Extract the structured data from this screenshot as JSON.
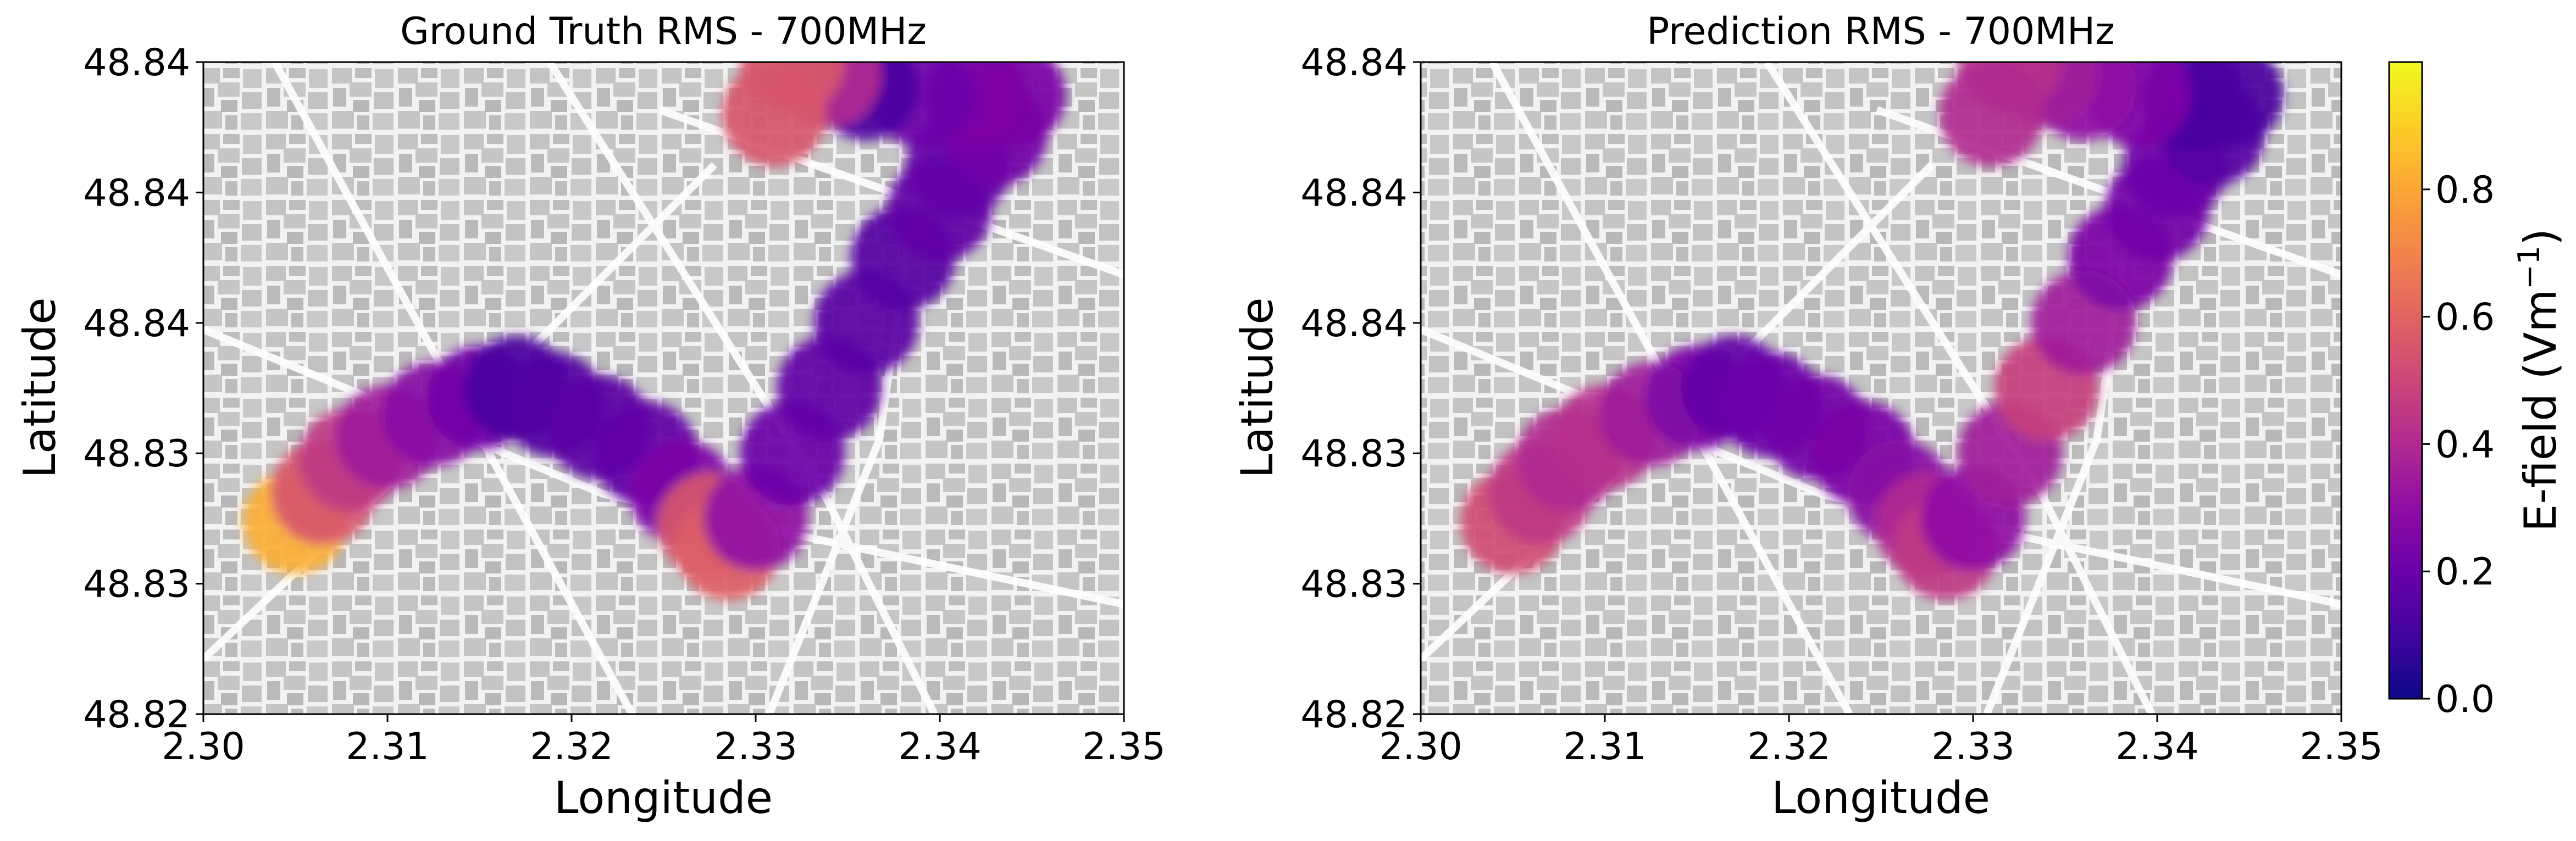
{
  "chart_data": [
    {
      "type": "heatmap",
      "title": "Ground Truth RMS - 700MHz",
      "xlabel": "Longitude",
      "ylabel": "Latitude",
      "xlim": [
        2.3,
        2.35
      ],
      "ylim": [
        48.82,
        48.84
      ],
      "xticks": [
        "2.30",
        "2.31",
        "2.32",
        "2.33",
        "2.34",
        "2.35"
      ],
      "yticks": [
        "48.82",
        "48.83",
        "48.83",
        "48.84",
        "48.84",
        "48.84"
      ],
      "grid": false,
      "background": "street map with buildings",
      "points": [
        {
          "lon": 2.305,
          "lat": 48.8259,
          "v": 0.82
        },
        {
          "lon": 2.3065,
          "lat": 48.8268,
          "v": 0.55
        },
        {
          "lon": 2.308,
          "lat": 48.8278,
          "v": 0.45
        },
        {
          "lon": 2.31,
          "lat": 48.8285,
          "v": 0.35
        },
        {
          "lon": 2.3125,
          "lat": 48.8292,
          "v": 0.28
        },
        {
          "lon": 2.315,
          "lat": 48.8297,
          "v": 0.22
        },
        {
          "lon": 2.317,
          "lat": 48.83,
          "v": 0.12
        },
        {
          "lon": 2.319,
          "lat": 48.8295,
          "v": 0.14
        },
        {
          "lon": 2.3215,
          "lat": 48.8288,
          "v": 0.16
        },
        {
          "lon": 2.324,
          "lat": 48.828,
          "v": 0.18
        },
        {
          "lon": 2.326,
          "lat": 48.8268,
          "v": 0.25
        },
        {
          "lon": 2.3275,
          "lat": 48.8258,
          "v": 0.55
        },
        {
          "lon": 2.3285,
          "lat": 48.8251,
          "v": 0.58
        },
        {
          "lon": 2.33,
          "lat": 48.826,
          "v": 0.3
        },
        {
          "lon": 2.332,
          "lat": 48.828,
          "v": 0.2
        },
        {
          "lon": 2.334,
          "lat": 48.83,
          "v": 0.18
        },
        {
          "lon": 2.336,
          "lat": 48.832,
          "v": 0.16
        },
        {
          "lon": 2.338,
          "lat": 48.834,
          "v": 0.15
        },
        {
          "lon": 2.34,
          "lat": 48.8355,
          "v": 0.18
        },
        {
          "lon": 2.341,
          "lat": 48.8368,
          "v": 0.18
        },
        {
          "lon": 2.343,
          "lat": 48.8378,
          "v": 0.22
        },
        {
          "lon": 2.344,
          "lat": 48.839,
          "v": 0.24
        },
        {
          "lon": 2.342,
          "lat": 48.8389,
          "v": 0.25
        },
        {
          "lon": 2.339,
          "lat": 48.839,
          "v": 0.2
        },
        {
          "lon": 2.336,
          "lat": 48.8392,
          "v": 0.12
        },
        {
          "lon": 2.334,
          "lat": 48.8396,
          "v": 0.4
        },
        {
          "lon": 2.332,
          "lat": 48.84,
          "v": 0.55
        },
        {
          "lon": 2.331,
          "lat": 48.8384,
          "v": 0.55
        }
      ]
    },
    {
      "type": "heatmap",
      "title": "Prediction RMS - 700MHz",
      "xlabel": "Longitude",
      "ylabel": "Latitude",
      "xlim": [
        2.3,
        2.35
      ],
      "ylim": [
        48.82,
        48.84
      ],
      "xticks": [
        "2.30",
        "2.31",
        "2.32",
        "2.33",
        "2.34",
        "2.35"
      ],
      "yticks": [
        "48.82",
        "48.83",
        "48.83",
        "48.84",
        "48.84",
        "48.84"
      ],
      "grid": false,
      "background": "street map with buildings",
      "points": [
        {
          "lon": 2.305,
          "lat": 48.8259,
          "v": 0.52
        },
        {
          "lon": 2.3065,
          "lat": 48.8268,
          "v": 0.45
        },
        {
          "lon": 2.308,
          "lat": 48.8278,
          "v": 0.4
        },
        {
          "lon": 2.31,
          "lat": 48.8285,
          "v": 0.42
        },
        {
          "lon": 2.3125,
          "lat": 48.8292,
          "v": 0.35
        },
        {
          "lon": 2.315,
          "lat": 48.8297,
          "v": 0.25
        },
        {
          "lon": 2.317,
          "lat": 48.83,
          "v": 0.18
        },
        {
          "lon": 2.319,
          "lat": 48.8295,
          "v": 0.2
        },
        {
          "lon": 2.3215,
          "lat": 48.8288,
          "v": 0.22
        },
        {
          "lon": 2.324,
          "lat": 48.828,
          "v": 0.24
        },
        {
          "lon": 2.326,
          "lat": 48.8268,
          "v": 0.28
        },
        {
          "lon": 2.3275,
          "lat": 48.8258,
          "v": 0.4
        },
        {
          "lon": 2.3285,
          "lat": 48.8251,
          "v": 0.45
        },
        {
          "lon": 2.33,
          "lat": 48.826,
          "v": 0.3
        },
        {
          "lon": 2.332,
          "lat": 48.828,
          "v": 0.35
        },
        {
          "lon": 2.334,
          "lat": 48.83,
          "v": 0.48
        },
        {
          "lon": 2.336,
          "lat": 48.832,
          "v": 0.35
        },
        {
          "lon": 2.338,
          "lat": 48.834,
          "v": 0.25
        },
        {
          "lon": 2.34,
          "lat": 48.8355,
          "v": 0.22
        },
        {
          "lon": 2.341,
          "lat": 48.8368,
          "v": 0.2
        },
        {
          "lon": 2.343,
          "lat": 48.8378,
          "v": 0.15
        },
        {
          "lon": 2.344,
          "lat": 48.839,
          "v": 0.12
        },
        {
          "lon": 2.342,
          "lat": 48.8389,
          "v": 0.12
        },
        {
          "lon": 2.339,
          "lat": 48.839,
          "v": 0.25
        },
        {
          "lon": 2.336,
          "lat": 48.8392,
          "v": 0.3
        },
        {
          "lon": 2.334,
          "lat": 48.8396,
          "v": 0.35
        },
        {
          "lon": 2.332,
          "lat": 48.84,
          "v": 0.42
        },
        {
          "lon": 2.331,
          "lat": 48.8384,
          "v": 0.4
        }
      ]
    }
  ],
  "colorbar": {
    "label": "E-field (Vm",
    "label_sup": "−1",
    "label_close": ")",
    "colormap": "plasma",
    "range": [
      0.0,
      1.0
    ],
    "ticks": [
      "0.0",
      "0.2",
      "0.4",
      "0.6",
      "0.8"
    ],
    "tick_values": [
      0.0,
      0.2,
      0.4,
      0.6,
      0.8
    ]
  }
}
